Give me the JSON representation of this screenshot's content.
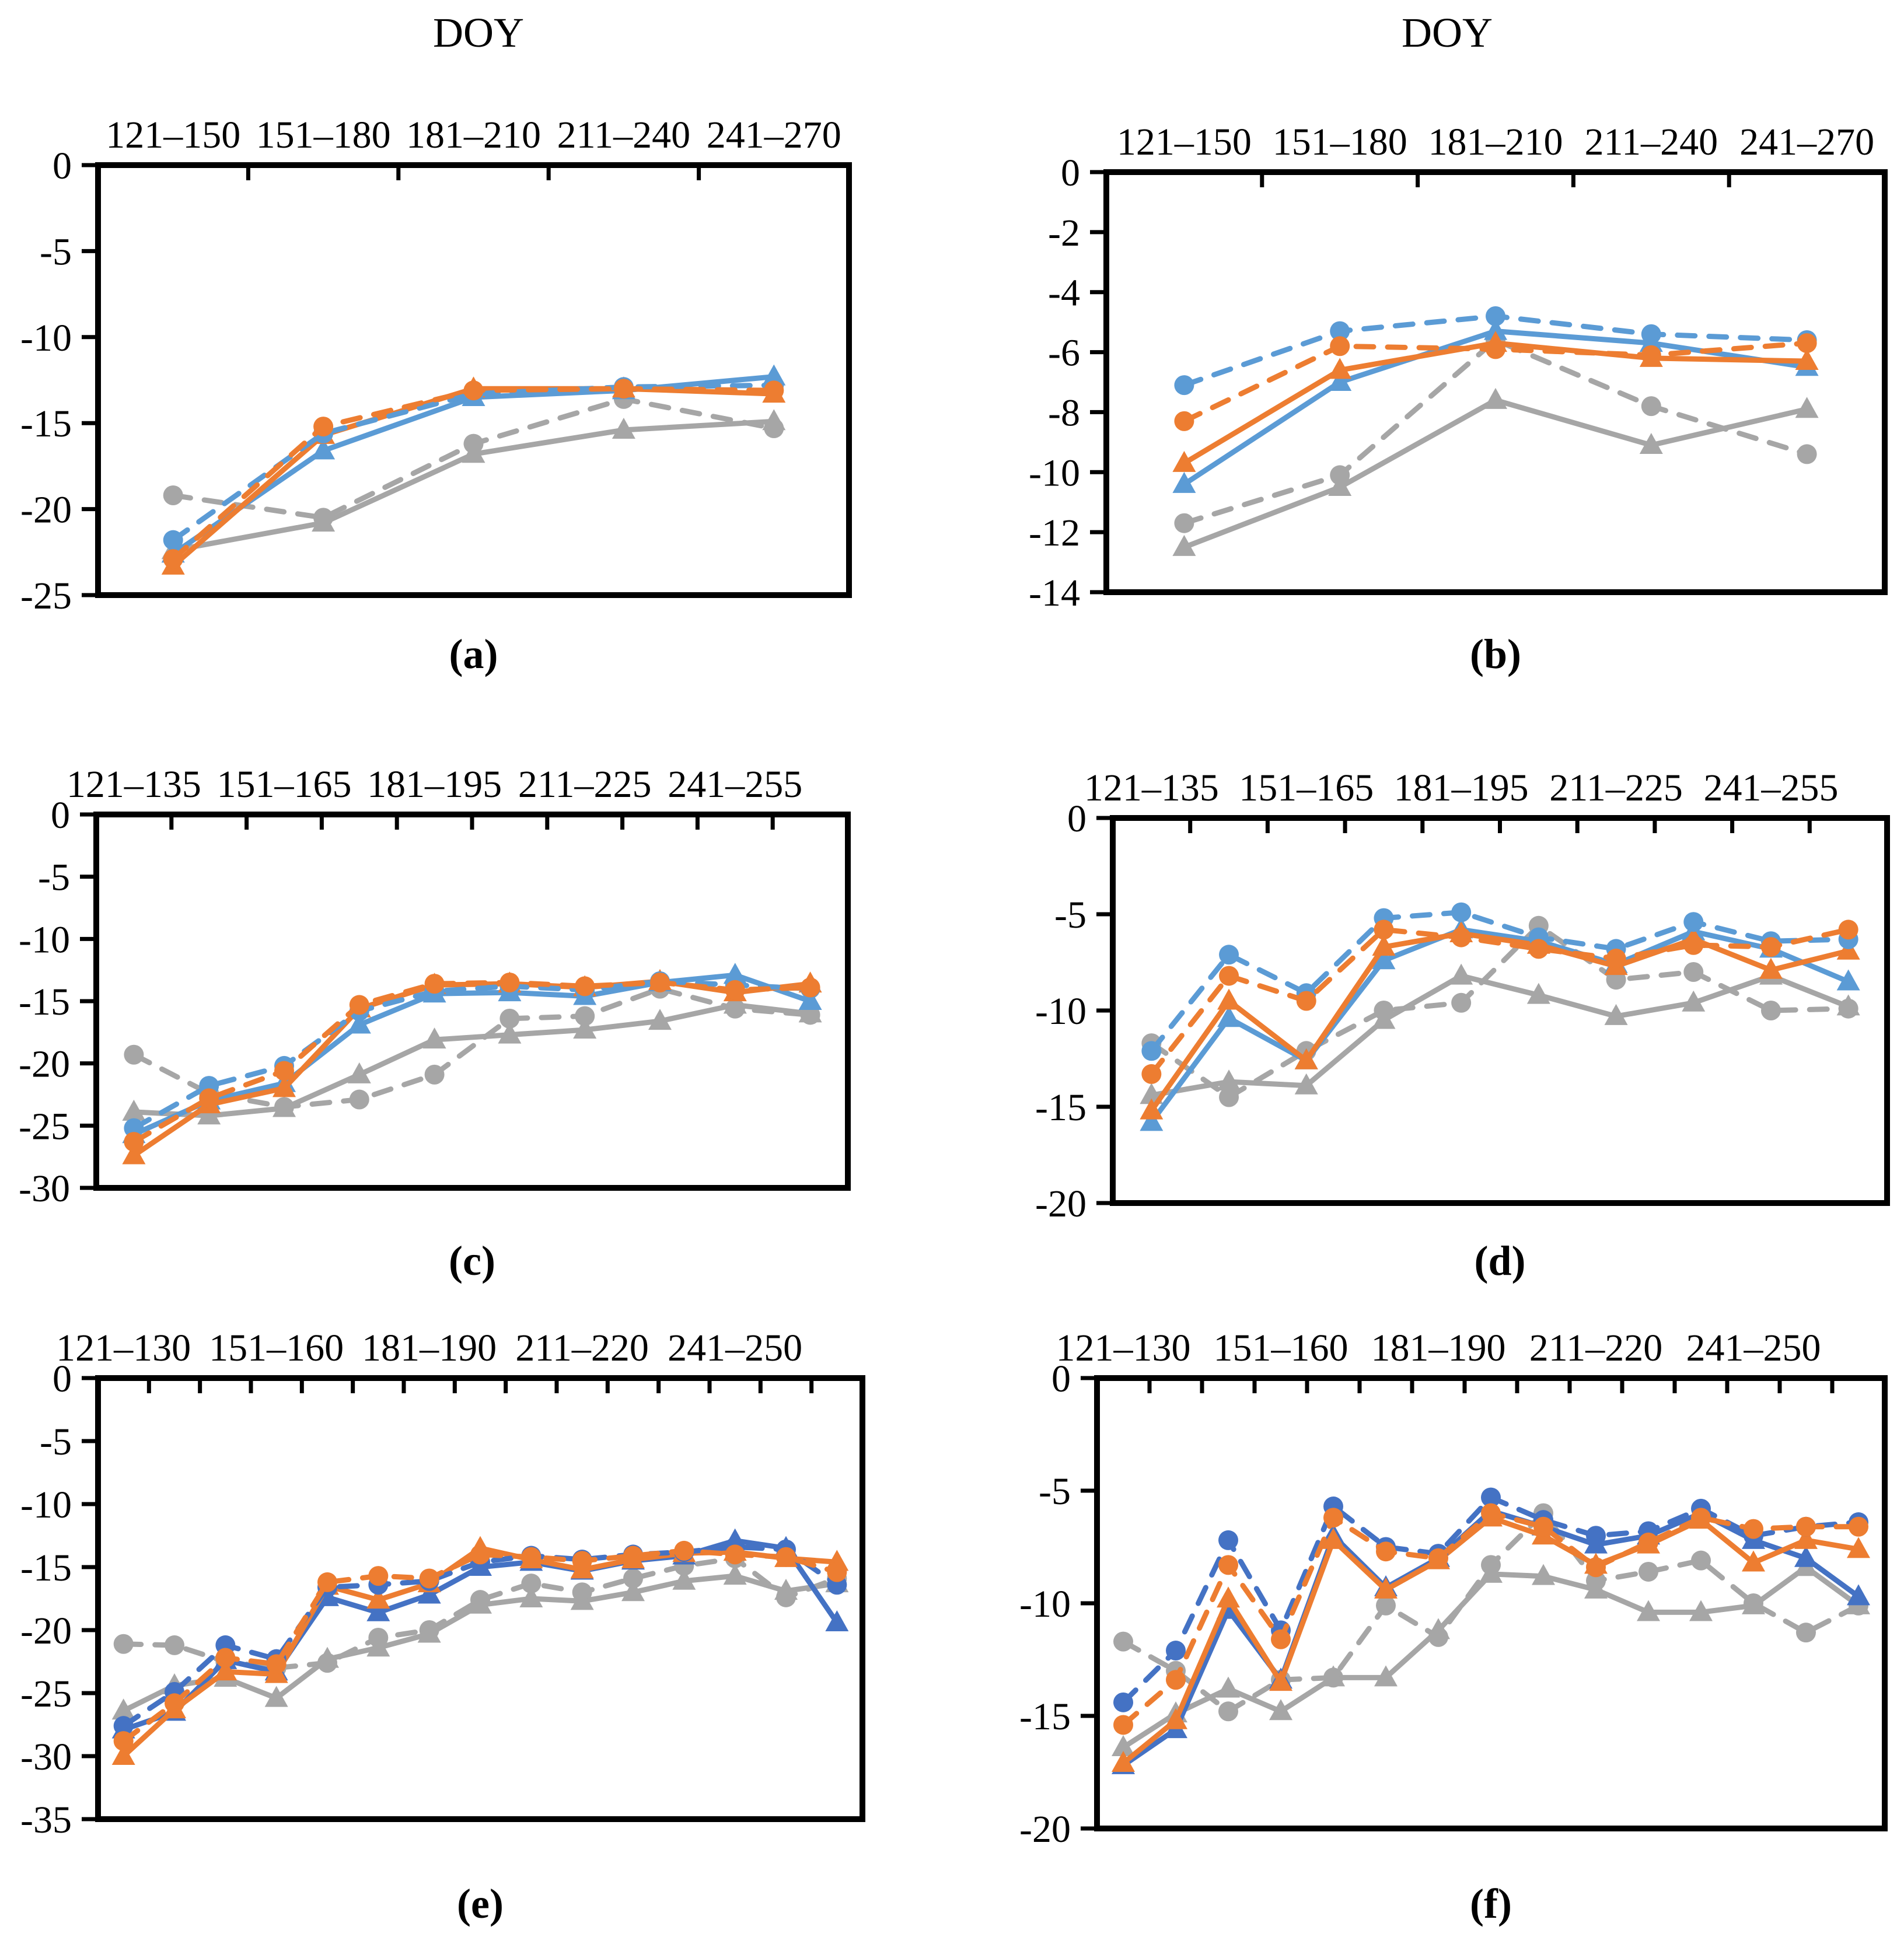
{
  "figure": {
    "background": "#ffffff"
  },
  "column_titles": [
    {
      "text": "DOY"
    },
    {
      "text": "DOY"
    }
  ],
  "colors": {
    "blue_light": "#5B9BD5",
    "blue_dark": "#4472C4",
    "orange": "#ED7D31",
    "gray": "#A6A6A6",
    "axis": "#000000"
  },
  "chart_data": [
    {
      "id": "a",
      "type": "line",
      "caption": "(a)",
      "n_points": 5,
      "x_tick_labels": [
        "121–150",
        "151–180",
        "181–210",
        "211–240",
        "241–270"
      ],
      "x_tick_positions": [
        0,
        1,
        2,
        3,
        4
      ],
      "ylim": [
        -25,
        0
      ],
      "ytick_step": 5,
      "grid": false,
      "legend": "none",
      "blue_color_key": "blue_light",
      "series": [
        {
          "name": "gray dashed circle",
          "color_key": "gray",
          "line_style": "dashed",
          "marker": "circle",
          "values": [
            -19.2,
            -20.5,
            -16.2,
            -13.6,
            -15.3
          ]
        },
        {
          "name": "gray solid triangle",
          "color_key": "gray",
          "line_style": "solid",
          "marker": "triangle",
          "values": [
            -22.4,
            -20.8,
            -16.8,
            -15.4,
            -14.9
          ]
        },
        {
          "name": "blue solid triangle",
          "color_key": "blue",
          "line_style": "solid",
          "marker": "triangle",
          "values": [
            -22.6,
            -16.6,
            -13.5,
            -13.1,
            -12.3
          ]
        },
        {
          "name": "orange solid triangle",
          "color_key": "orange",
          "line_style": "solid",
          "marker": "triangle",
          "values": [
            -23.3,
            -15.7,
            -13.0,
            -13.0,
            -13.3
          ]
        },
        {
          "name": "blue dashed circle",
          "color_key": "blue",
          "line_style": "dashed",
          "marker": "circle",
          "values": [
            -21.8,
            -15.6,
            -13.3,
            -12.9,
            -12.8
          ]
        },
        {
          "name": "orange dashed circle",
          "color_key": "orange",
          "line_style": "dashed",
          "marker": "circle",
          "values": [
            -22.9,
            -15.2,
            -13.1,
            -13.0,
            -13.1
          ]
        }
      ]
    },
    {
      "id": "b",
      "type": "line",
      "caption": "(b)",
      "n_points": 5,
      "x_tick_labels": [
        "121–150",
        "151–180",
        "181–210",
        "211–240",
        "241–270"
      ],
      "x_tick_positions": [
        0,
        1,
        2,
        3,
        4
      ],
      "ylim": [
        -14,
        0
      ],
      "ytick_step": 2,
      "grid": false,
      "legend": "none",
      "blue_color_key": "blue_light",
      "series": [
        {
          "name": "gray dashed circle",
          "color_key": "gray",
          "line_style": "dashed",
          "marker": "circle",
          "values": [
            -11.7,
            -10.1,
            -5.6,
            -7.8,
            -9.4
          ]
        },
        {
          "name": "gray solid triangle",
          "color_key": "gray",
          "line_style": "solid",
          "marker": "triangle",
          "values": [
            -12.5,
            -10.5,
            -7.6,
            -9.1,
            -7.9
          ]
        },
        {
          "name": "blue solid triangle",
          "color_key": "blue",
          "line_style": "solid",
          "marker": "triangle",
          "values": [
            -10.4,
            -7.0,
            -5.3,
            -5.7,
            -6.5
          ]
        },
        {
          "name": "orange solid triangle",
          "color_key": "orange",
          "line_style": "solid",
          "marker": "triangle",
          "values": [
            -9.7,
            -6.6,
            -5.7,
            -6.2,
            -6.3
          ]
        },
        {
          "name": "blue dashed circle",
          "color_key": "blue",
          "line_style": "dashed",
          "marker": "circle",
          "values": [
            -7.1,
            -5.3,
            -4.8,
            -5.4,
            -5.6
          ]
        },
        {
          "name": "orange dashed circle",
          "color_key": "orange",
          "line_style": "dashed",
          "marker": "circle",
          "values": [
            -8.3,
            -5.8,
            -5.9,
            -6.1,
            -5.7
          ]
        }
      ]
    },
    {
      "id": "c",
      "type": "line",
      "caption": "(c)",
      "n_points": 10,
      "x_tick_labels": [
        "121–135",
        "151–165",
        "181–195",
        "211–225",
        "241–255"
      ],
      "x_tick_positions": [
        0,
        2,
        4,
        6,
        8
      ],
      "ylim": [
        -30,
        0
      ],
      "ytick_step": 5,
      "grid": false,
      "legend": "none",
      "blue_color_key": "blue_light",
      "series": [
        {
          "name": "gray dashed circle",
          "color_key": "gray",
          "line_style": "dashed",
          "marker": "circle",
          "values": [
            -19.3,
            -22.4,
            -23.5,
            -22.9,
            -20.9,
            -16.4,
            -16.2,
            -14.0,
            -15.6,
            -16.1
          ]
        },
        {
          "name": "gray solid triangle",
          "color_key": "gray",
          "line_style": "solid",
          "marker": "triangle",
          "values": [
            -23.9,
            -24.2,
            -23.6,
            -20.9,
            -18.1,
            -17.7,
            -17.3,
            -16.6,
            -15.3,
            -16.0
          ]
        },
        {
          "name": "blue solid triangle",
          "color_key": "blue",
          "line_style": "solid",
          "marker": "triangle",
          "values": [
            -25.7,
            -23.0,
            -21.6,
            -16.9,
            -14.4,
            -14.3,
            -14.6,
            -13.5,
            -12.9,
            -15.0
          ]
        },
        {
          "name": "orange solid triangle",
          "color_key": "orange",
          "line_style": "solid",
          "marker": "triangle",
          "values": [
            -27.4,
            -23.3,
            -22.0,
            -15.6,
            -13.7,
            -13.6,
            -13.9,
            -13.4,
            -14.3,
            -13.6
          ]
        },
        {
          "name": "blue dashed circle",
          "color_key": "blue",
          "line_style": "dashed",
          "marker": "circle",
          "values": [
            -25.2,
            -21.8,
            -20.2,
            -15.8,
            -14.2,
            -13.8,
            -14.1,
            -13.4,
            -13.7,
            -14.0
          ]
        },
        {
          "name": "orange dashed circle",
          "color_key": "orange",
          "line_style": "dashed",
          "marker": "circle",
          "values": [
            -26.3,
            -22.8,
            -20.6,
            -15.3,
            -13.6,
            -13.5,
            -13.8,
            -13.5,
            -14.1,
            -13.9
          ]
        }
      ]
    },
    {
      "id": "d",
      "type": "line",
      "caption": "(d)",
      "n_points": 10,
      "x_tick_labels": [
        "121–135",
        "151–165",
        "181–195",
        "211–225",
        "241–255"
      ],
      "x_tick_positions": [
        0,
        2,
        4,
        6,
        8
      ],
      "ylim": [
        -20,
        0
      ],
      "ytick_step": 5,
      "grid": false,
      "legend": "none",
      "blue_color_key": "blue_light",
      "series": [
        {
          "name": "gray dashed circle",
          "color_key": "gray",
          "line_style": "dashed",
          "marker": "circle",
          "values": [
            -11.7,
            -14.5,
            -12.1,
            -10.0,
            -9.6,
            -5.6,
            -8.4,
            -8.0,
            -10.0,
            -9.9
          ]
        },
        {
          "name": "gray solid triangle",
          "color_key": "gray",
          "line_style": "solid",
          "marker": "triangle",
          "values": [
            -14.4,
            -13.7,
            -13.9,
            -10.5,
            -8.2,
            -9.2,
            -10.3,
            -9.6,
            -8.2,
            -9.8
          ]
        },
        {
          "name": "blue solid triangle",
          "color_key": "blue",
          "line_style": "solid",
          "marker": "triangle",
          "values": [
            -15.8,
            -10.4,
            -12.6,
            -7.4,
            -5.8,
            -6.4,
            -7.6,
            -5.9,
            -6.8,
            -8.5
          ]
        },
        {
          "name": "orange solid triangle",
          "color_key": "orange",
          "line_style": "solid",
          "marker": "triangle",
          "values": [
            -15.2,
            -9.5,
            -12.6,
            -6.7,
            -6.0,
            -6.6,
            -7.7,
            -6.3,
            -7.9,
            -6.9
          ]
        },
        {
          "name": "blue dashed circle",
          "color_key": "blue",
          "line_style": "dashed",
          "marker": "circle",
          "values": [
            -12.1,
            -7.1,
            -9.1,
            -5.2,
            -4.9,
            -6.2,
            -6.8,
            -5.4,
            -6.4,
            -6.3
          ]
        },
        {
          "name": "orange dashed circle",
          "color_key": "orange",
          "line_style": "dashed",
          "marker": "circle",
          "values": [
            -13.3,
            -8.2,
            -9.5,
            -5.8,
            -6.2,
            -6.8,
            -7.3,
            -6.6,
            -6.7,
            -5.8
          ]
        }
      ]
    },
    {
      "id": "e",
      "type": "line",
      "caption": "(e)",
      "n_points": 15,
      "x_tick_labels": [
        "121–130",
        "151–160",
        "181–190",
        "211–220",
        "241–250"
      ],
      "x_tick_positions": [
        0,
        3,
        6,
        9,
        12
      ],
      "ylim": [
        -35,
        0
      ],
      "ytick_step": 5,
      "grid": false,
      "legend": "none",
      "blue_color_key": "blue_dark",
      "series": [
        {
          "name": "gray dashed circle",
          "color_key": "gray",
          "line_style": "dashed",
          "marker": "circle",
          "values": [
            -21.1,
            -21.2,
            -22.5,
            -23.0,
            -22.6,
            -20.6,
            -20.0,
            -17.6,
            -16.3,
            -17.0,
            -15.9,
            -14.9,
            -14.3,
            -17.4,
            -15.9
          ]
        },
        {
          "name": "gray solid triangle",
          "color_key": "gray",
          "line_style": "solid",
          "marker": "triangle",
          "values": [
            -26.4,
            -24.4,
            -23.8,
            -25.4,
            -22.3,
            -21.4,
            -20.3,
            -18.0,
            -17.5,
            -17.7,
            -17.0,
            -16.1,
            -15.7,
            -16.9,
            -16.3
          ]
        },
        {
          "name": "blue solid triangle",
          "color_key": "blue",
          "line_style": "solid",
          "marker": "triangle",
          "values": [
            -27.9,
            -26.5,
            -22.4,
            -23.3,
            -17.4,
            -18.6,
            -17.2,
            -15.0,
            -14.6,
            -15.3,
            -14.5,
            -14.1,
            -12.9,
            -13.5,
            -19.4
          ]
        },
        {
          "name": "orange solid triangle",
          "color_key": "orange",
          "line_style": "solid",
          "marker": "triangle",
          "values": [
            -30.0,
            -26.3,
            -23.3,
            -23.5,
            -16.5,
            -17.6,
            -16.3,
            -13.5,
            -14.4,
            -15.2,
            -14.4,
            -13.9,
            -13.8,
            -14.3,
            -14.6
          ]
        },
        {
          "name": "blue dashed circle",
          "color_key": "blue",
          "line_style": "dashed",
          "marker": "circle",
          "values": [
            -27.6,
            -24.9,
            -21.2,
            -22.3,
            -16.6,
            -16.4,
            -16.1,
            -14.6,
            -14.1,
            -14.4,
            -14.0,
            -13.8,
            -13.4,
            -13.6,
            -16.4
          ]
        },
        {
          "name": "orange dashed circle",
          "color_key": "orange",
          "line_style": "dashed",
          "marker": "circle",
          "values": [
            -28.8,
            -25.8,
            -22.2,
            -22.7,
            -16.2,
            -15.7,
            -15.9,
            -14.0,
            -14.2,
            -14.5,
            -14.1,
            -13.7,
            -14.0,
            -14.2,
            -15.4
          ]
        }
      ]
    },
    {
      "id": "f",
      "type": "line",
      "caption": "(f)",
      "n_points": 15,
      "x_tick_labels": [
        "121–130",
        "151–160",
        "181–190",
        "211–220",
        "241–250"
      ],
      "x_tick_positions": [
        0,
        3,
        6,
        9,
        12
      ],
      "ylim": [
        -20,
        0
      ],
      "ytick_step": 5,
      "grid": false,
      "legend": "none",
      "blue_color_key": "blue_dark",
      "series": [
        {
          "name": "gray dashed circle",
          "color_key": "gray",
          "line_style": "dashed",
          "marker": "circle",
          "values": [
            -11.7,
            -13.0,
            -14.8,
            -13.4,
            -13.3,
            -10.1,
            -11.5,
            -8.3,
            -6.0,
            -9.0,
            -8.6,
            -8.1,
            -10.0,
            -11.3,
            -10.1
          ]
        },
        {
          "name": "gray solid triangle",
          "color_key": "gray",
          "line_style": "solid",
          "marker": "triangle",
          "values": [
            -16.4,
            -14.9,
            -13.8,
            -14.8,
            -13.3,
            -13.3,
            -11.2,
            -8.7,
            -8.8,
            -9.4,
            -10.4,
            -10.4,
            -10.1,
            -8.4,
            -10.1
          ]
        },
        {
          "name": "blue solid triangle",
          "color_key": "blue",
          "line_style": "solid",
          "marker": "triangle",
          "values": [
            -17.2,
            -15.6,
            -10.3,
            -13.4,
            -7.0,
            -9.3,
            -8.0,
            -5.9,
            -6.6,
            -7.4,
            -7.0,
            -6.0,
            -7.2,
            -8.0,
            -9.7
          ]
        },
        {
          "name": "orange solid triangle",
          "color_key": "orange",
          "line_style": "solid",
          "marker": "triangle",
          "values": [
            -17.1,
            -15.2,
            -9.8,
            -13.5,
            -7.2,
            -9.4,
            -8.1,
            -6.2,
            -7.0,
            -8.3,
            -7.4,
            -6.3,
            -8.2,
            -7.2,
            -7.6
          ]
        },
        {
          "name": "blue dashed circle",
          "color_key": "blue",
          "line_style": "dashed",
          "marker": "circle",
          "values": [
            -14.4,
            -12.1,
            -7.2,
            -11.2,
            -5.7,
            -7.5,
            -7.8,
            -5.3,
            -6.3,
            -7.0,
            -6.8,
            -5.8,
            -7.0,
            -6.6,
            -6.4
          ]
        },
        {
          "name": "orange dashed circle",
          "color_key": "orange",
          "line_style": "dashed",
          "marker": "circle",
          "values": [
            -15.4,
            -13.4,
            -8.3,
            -11.6,
            -6.2,
            -7.7,
            -8.0,
            -6.0,
            -6.6,
            -8.4,
            -7.3,
            -6.2,
            -6.7,
            -6.6,
            -6.6
          ]
        }
      ]
    }
  ]
}
